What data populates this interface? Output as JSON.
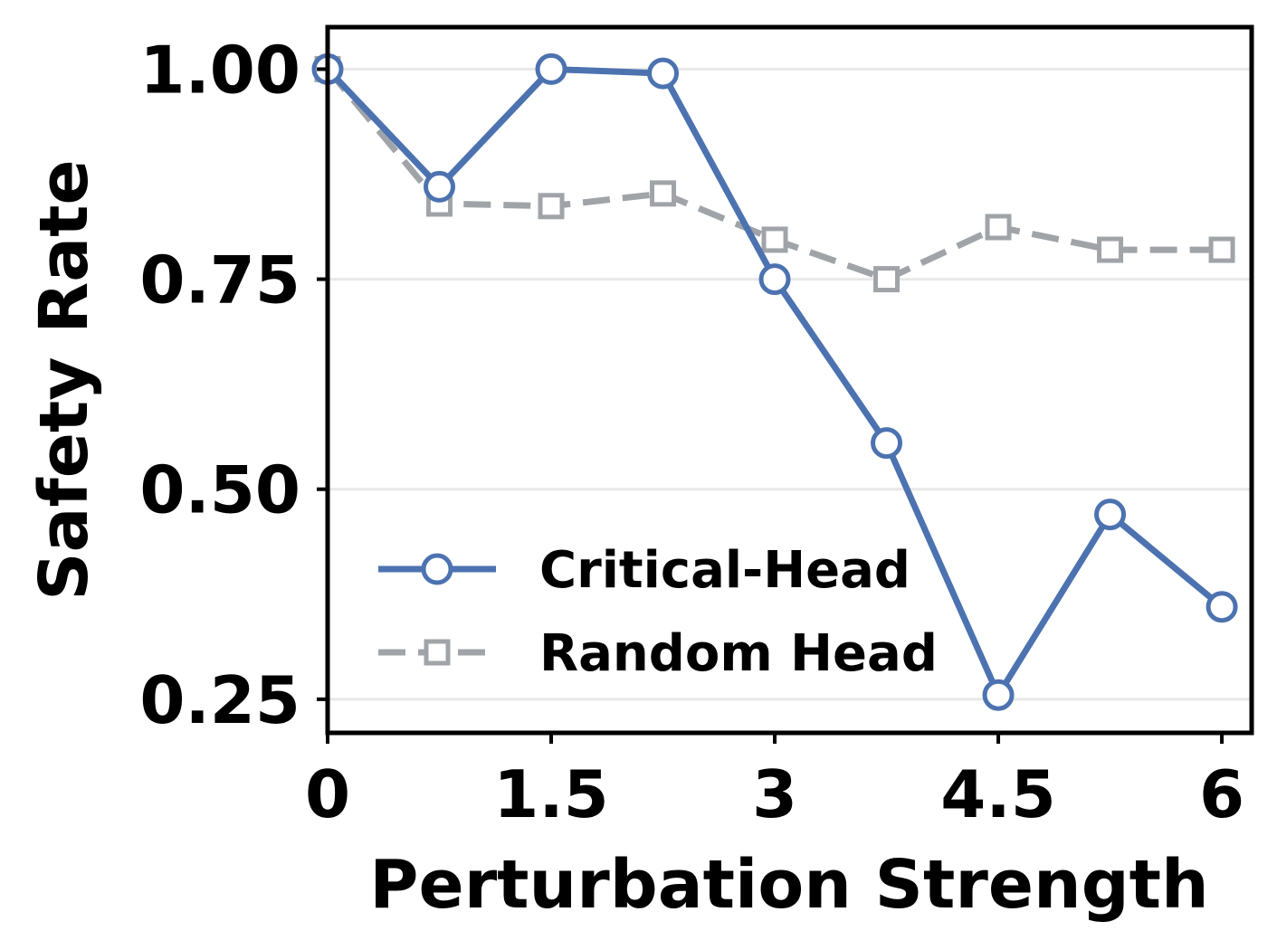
{
  "chart_data": {
    "type": "line",
    "title": "",
    "xlabel": "Perturbation Strength",
    "ylabel": "Safety Rate",
    "xlim": [
      0,
      6.2
    ],
    "ylim": [
      0.21,
      1.05
    ],
    "xticks": [
      0,
      1.5,
      3,
      4.5,
      6
    ],
    "xtick_labels": [
      "0",
      "1.5",
      "3",
      "4.5",
      "6"
    ],
    "yticks": [
      0.25,
      0.5,
      0.75,
      1.0
    ],
    "ytick_labels": [
      "0.25",
      "0.50",
      "0.75",
      "1.00"
    ],
    "grid": "horizontal",
    "legend_position": "lower-left",
    "series": [
      {
        "name": "Critical-Head",
        "color": "#4c72b0",
        "marker": "circle",
        "line_style": "solid",
        "x": [
          0,
          0.75,
          1.5,
          2.25,
          3.0,
          3.75,
          4.5,
          5.25,
          6.0
        ],
        "y": [
          1.0,
          0.86,
          1.0,
          0.995,
          0.75,
          0.555,
          0.255,
          0.47,
          0.36
        ]
      },
      {
        "name": "Random Head",
        "color": "#a0a4a9",
        "marker": "square",
        "line_style": "dashed",
        "x": [
          0,
          0.75,
          1.5,
          2.25,
          3.0,
          3.75,
          4.5,
          5.25,
          6.0
        ],
        "y": [
          1.0,
          0.84,
          0.837,
          0.852,
          0.797,
          0.75,
          0.812,
          0.785,
          0.785
        ]
      }
    ]
  }
}
